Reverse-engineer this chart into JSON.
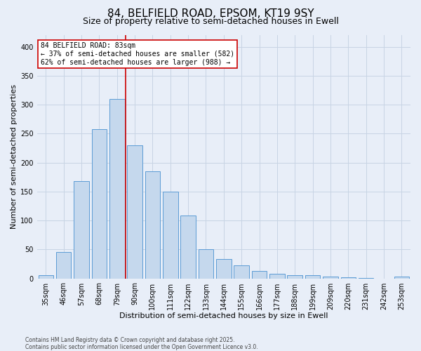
{
  "title": "84, BELFIELD ROAD, EPSOM, KT19 9SY",
  "subtitle": "Size of property relative to semi-detached houses in Ewell",
  "xlabel": "Distribution of semi-detached houses by size in Ewell",
  "ylabel": "Number of semi-detached properties",
  "footer": "Contains HM Land Registry data © Crown copyright and database right 2025.\nContains public sector information licensed under the Open Government Licence v3.0.",
  "categories": [
    "35sqm",
    "46sqm",
    "57sqm",
    "68sqm",
    "79sqm",
    "90sqm",
    "100sqm",
    "111sqm",
    "122sqm",
    "133sqm",
    "144sqm",
    "155sqm",
    "166sqm",
    "177sqm",
    "188sqm",
    "199sqm",
    "209sqm",
    "220sqm",
    "231sqm",
    "242sqm",
    "253sqm"
  ],
  "values": [
    5,
    45,
    168,
    258,
    310,
    230,
    185,
    150,
    108,
    50,
    33,
    22,
    13,
    8,
    5,
    5,
    3,
    2,
    1,
    0,
    3
  ],
  "bar_color": "#c5d8ed",
  "bar_edge_color": "#5b9bd5",
  "property_line_x": 4.5,
  "annotation_title": "84 BELFIELD ROAD: 83sqm",
  "annotation_line1": "← 37% of semi-detached houses are smaller (582)",
  "annotation_line2": "62% of semi-detached houses are larger (988) →",
  "vline_color": "#cc0000",
  "annotation_box_edge": "#cc0000",
  "ylim": [
    0,
    420
  ],
  "yticks": [
    0,
    50,
    100,
    150,
    200,
    250,
    300,
    350,
    400
  ],
  "grid_color": "#c8d4e4",
  "bg_color": "#e8eef8",
  "title_fontsize": 11,
  "subtitle_fontsize": 9,
  "tick_fontsize": 7,
  "axis_label_fontsize": 8,
  "annotation_fontsize": 7,
  "footer_fontsize": 5.5
}
